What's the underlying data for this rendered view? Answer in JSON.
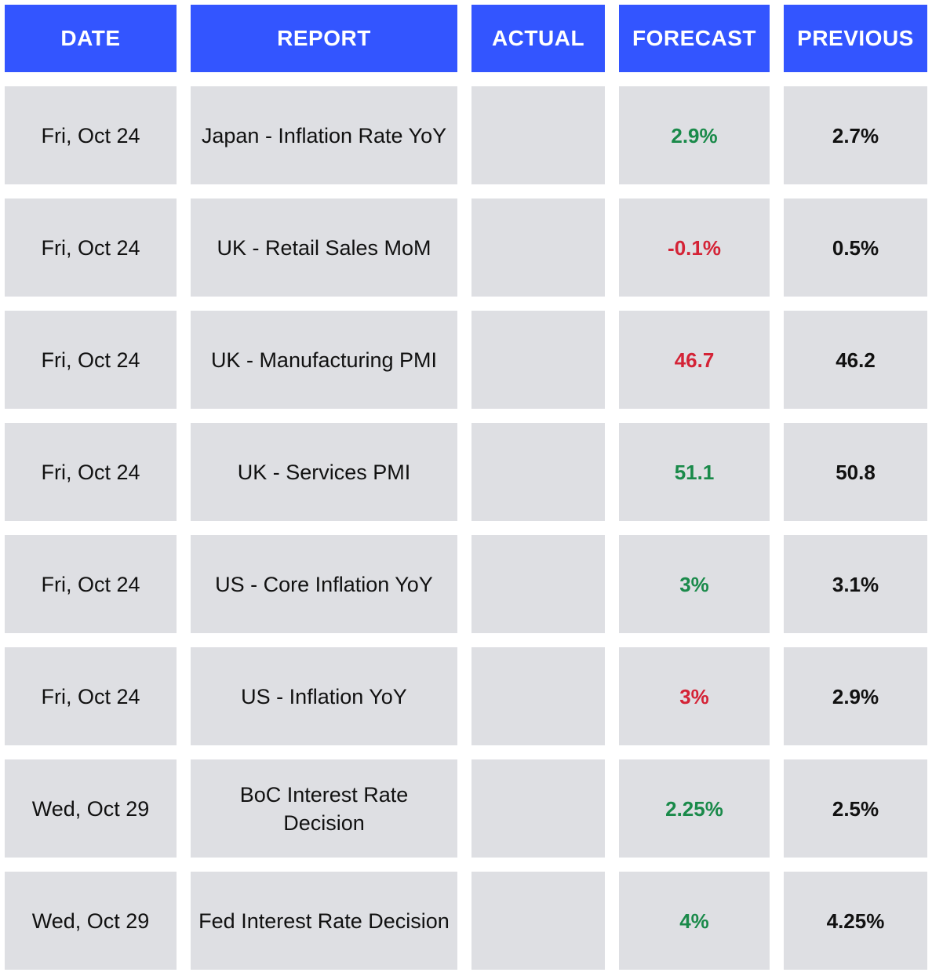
{
  "headers": {
    "date": "DATE",
    "report": "REPORT",
    "actual": "ACTUAL",
    "forecast": "FORECAST",
    "previous": "PREVIOUS"
  },
  "colors": {
    "header_bg": "#3355ff",
    "cell_bg": "#dedfe3",
    "positive": "#1a8a4a",
    "negative": "#d42336"
  },
  "rows": [
    {
      "date": "Fri, Oct 24",
      "report": "Japan - Inflation Rate YoY",
      "actual": "",
      "forecast": "2.9%",
      "forecast_trend": "up",
      "previous": "2.7%"
    },
    {
      "date": "Fri, Oct 24",
      "report": "UK - Retail Sales MoM",
      "actual": "",
      "forecast": "-0.1%",
      "forecast_trend": "down",
      "previous": "0.5%"
    },
    {
      "date": "Fri, Oct 24",
      "report": "UK - Manufacturing PMI",
      "actual": "",
      "forecast": "46.7",
      "forecast_trend": "down",
      "previous": "46.2"
    },
    {
      "date": "Fri, Oct 24",
      "report": "UK - Services PMI",
      "actual": "",
      "forecast": "51.1",
      "forecast_trend": "up",
      "previous": "50.8"
    },
    {
      "date": "Fri, Oct 24",
      "report": "US - Core Inflation YoY",
      "actual": "",
      "forecast": "3%",
      "forecast_trend": "up",
      "previous": "3.1%"
    },
    {
      "date": "Fri, Oct 24",
      "report": "US - Inflation YoY",
      "actual": "",
      "forecast": "3%",
      "forecast_trend": "down",
      "previous": "2.9%"
    },
    {
      "date": "Wed, Oct 29",
      "report": "BoC Interest Rate Decision",
      "actual": "",
      "forecast": "2.25%",
      "forecast_trend": "up",
      "previous": "2.5%"
    },
    {
      "date": "Wed, Oct 29",
      "report": "Fed Interest Rate Decision",
      "actual": "",
      "forecast": "4%",
      "forecast_trend": "up",
      "previous": "4.25%"
    }
  ]
}
